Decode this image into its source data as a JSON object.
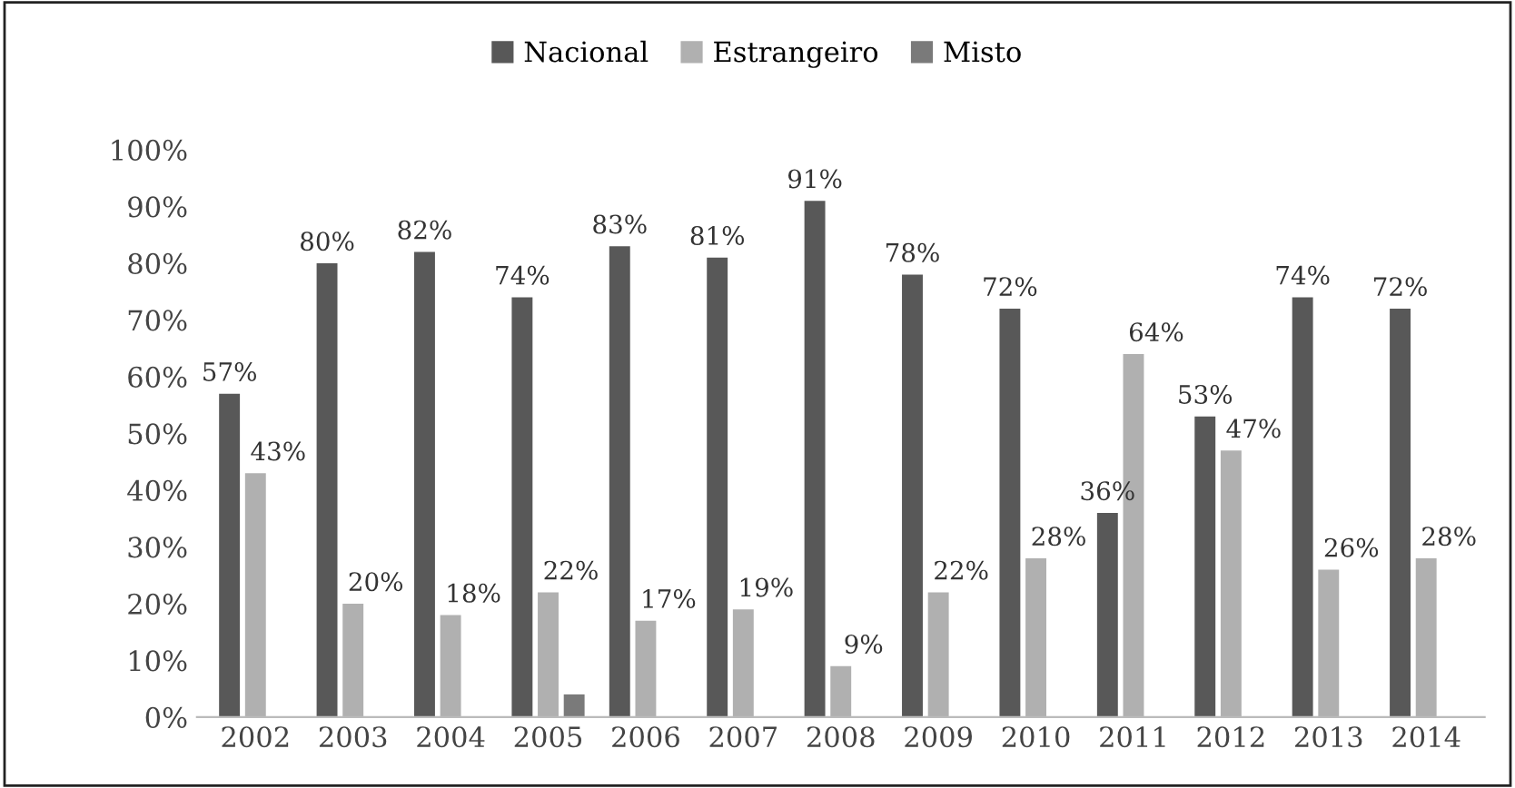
{
  "chart_data": {
    "type": "bar",
    "categories": [
      "2002",
      "2003",
      "2004",
      "2005",
      "2006",
      "2007",
      "2008",
      "2009",
      "2010",
      "2011",
      "2012",
      "2013",
      "2014"
    ],
    "series": [
      {
        "name": "Nacional",
        "color": "#585858",
        "values": [
          57,
          80,
          82,
          74,
          83,
          81,
          91,
          78,
          72,
          36,
          53,
          74,
          72
        ],
        "value_labels": [
          "57%",
          "80%",
          "82%",
          "74%",
          "83%",
          "81%",
          "91%",
          "78%",
          "72%",
          "36%",
          "53%",
          "74%",
          "72%"
        ]
      },
      {
        "name": "Estrangeiro",
        "color": "#b0b0b0",
        "values": [
          43,
          20,
          18,
          22,
          17,
          19,
          9,
          22,
          28,
          64,
          47,
          26,
          28
        ],
        "value_labels": [
          "43%",
          "20%",
          "18%",
          "22%",
          "17%",
          "19%",
          "9%",
          "22%",
          "28%",
          "64%",
          "47%",
          "26%",
          "28%"
        ]
      },
      {
        "name": "Misto",
        "color": "#7a7a7a",
        "values": [
          null,
          null,
          null,
          4,
          null,
          null,
          null,
          null,
          null,
          null,
          null,
          null,
          null
        ]
      }
    ],
    "ylim": [
      0,
      100
    ],
    "yticks": [
      {
        "value": 0,
        "label": "0%"
      },
      {
        "value": 10,
        "label": "10%"
      },
      {
        "value": 20,
        "label": "20%"
      },
      {
        "value": 30,
        "label": "30%"
      },
      {
        "value": 40,
        "label": "40%"
      },
      {
        "value": 50,
        "label": "50%"
      },
      {
        "value": 60,
        "label": "60%"
      },
      {
        "value": 70,
        "label": "70%"
      },
      {
        "value": 80,
        "label": "80%"
      },
      {
        "value": 90,
        "label": "90%"
      },
      {
        "value": 100,
        "label": "100%"
      }
    ],
    "grid": false,
    "legend": "top"
  }
}
